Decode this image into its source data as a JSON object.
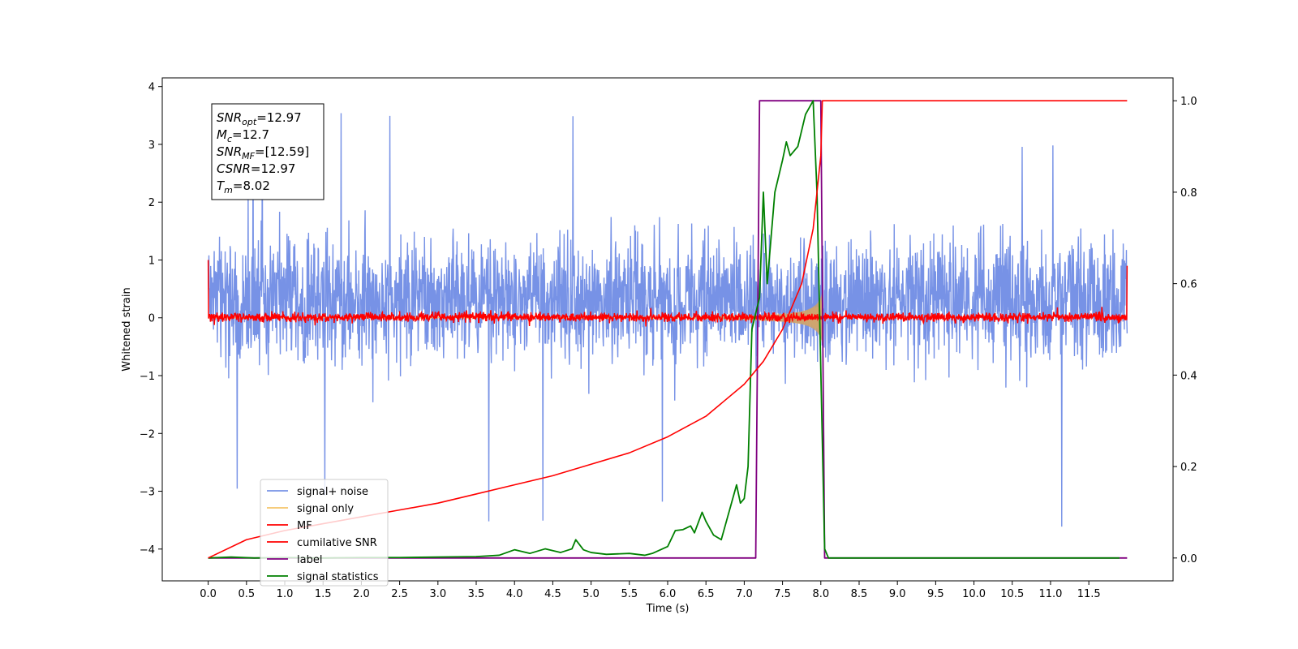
{
  "chart_data": {
    "type": "line",
    "xlabel": "Time (s)",
    "ylabel": "Whitened strain",
    "xlim": [
      -0.6,
      12.6
    ],
    "ylim_left": [
      -4.55,
      4.15
    ],
    "ylim_right": [
      -0.05,
      1.05
    ],
    "x_ticks": [
      0.0,
      0.5,
      1.0,
      1.5,
      2.0,
      2.5,
      3.0,
      3.5,
      4.0,
      4.5,
      5.0,
      5.5,
      6.0,
      6.5,
      7.0,
      7.5,
      8.0,
      8.5,
      9.0,
      9.5,
      10.0,
      10.5,
      11.0,
      11.5
    ],
    "x_tick_labels": [
      "0.0",
      "0.5",
      "1.0",
      "1.5",
      "2.0",
      "2.5",
      "3.0",
      "3.5",
      "4.0",
      "4.5",
      "5.0",
      "5.5",
      "6.0",
      "6.5",
      "7.0",
      "7.5",
      "8.0",
      "8.5",
      "9.0",
      "9.5",
      "10.0",
      "10.5",
      "11.0",
      "11.5"
    ],
    "y_left_ticks": [
      -4,
      -3,
      -2,
      -1,
      0,
      1,
      2,
      3,
      4
    ],
    "y_left_tick_labels": [
      "−4",
      "−3",
      "−2",
      "−1",
      "0",
      "1",
      "2",
      "3",
      "4"
    ],
    "y_right_ticks": [
      0.0,
      0.2,
      0.4,
      0.6,
      0.8,
      1.0
    ],
    "y_right_tick_labels": [
      "0.0",
      "0.2",
      "0.4",
      "0.6",
      "0.8",
      "1.0"
    ],
    "annotation": {
      "lines": [
        {
          "sym": "SNR",
          "sub": "opt",
          "value": "=12.97"
        },
        {
          "sym": "M",
          "sub": "c",
          "value": "=12.7"
        },
        {
          "sym": "SNR",
          "sub": "MF",
          "value": "=[12.59]"
        },
        {
          "sym": "CSNR",
          "sub": "",
          "value": "=12.97"
        },
        {
          "sym": "T",
          "sub": "m",
          "value": "=8.02"
        }
      ]
    },
    "legend_position": "lower-left",
    "series": [
      {
        "name": "signal+ noise",
        "color": "#7792e6",
        "axis": "left",
        "style": "noise-band",
        "x_range": [
          0.0,
          12.0
        ],
        "typical_range": [
          -1.6,
          2.3
        ],
        "extremes": [
          -4.2,
          3.8
        ]
      },
      {
        "name": "signal only",
        "color": "#f5c46a",
        "axis": "left",
        "style": "chirp",
        "x_range": [
          0.0,
          8.02
        ],
        "peak_amplitude": 0.9,
        "merger_time": 8.02
      },
      {
        "name": "MF",
        "color": "#ff0000",
        "axis": "left",
        "style": "noise-band",
        "x_range": [
          0.0,
          12.0
        ],
        "typical_range": [
          -0.18,
          0.2
        ],
        "endpoints": [
          1.0,
          0.9
        ]
      },
      {
        "name": "cumilative SNR",
        "color": "#ff0000",
        "axis": "right",
        "x": [
          0.0,
          0.5,
          1.0,
          1.5,
          2.0,
          2.5,
          3.0,
          3.5,
          4.0,
          4.5,
          5.0,
          5.5,
          6.0,
          6.5,
          7.0,
          7.25,
          7.5,
          7.75,
          7.9,
          8.0,
          8.02,
          12.0
        ],
        "y": [
          0.0,
          0.04,
          0.06,
          0.075,
          0.09,
          0.105,
          0.12,
          0.14,
          0.16,
          0.18,
          0.205,
          0.23,
          0.265,
          0.31,
          0.38,
          0.43,
          0.5,
          0.6,
          0.72,
          0.88,
          1.0,
          1.0
        ]
      },
      {
        "name": "label",
        "color": "#800080",
        "axis": "right",
        "x": [
          0.0,
          7.15,
          7.2,
          8.0,
          8.05,
          12.0
        ],
        "y": [
          0.0,
          0.0,
          1.0,
          1.0,
          0.0,
          0.0
        ]
      },
      {
        "name": "signal statistics",
        "color": "#008000",
        "axis": "right",
        "x": [
          0.0,
          0.3,
          0.6,
          1.0,
          1.5,
          2.0,
          2.5,
          3.0,
          3.5,
          3.8,
          4.0,
          4.2,
          4.4,
          4.6,
          4.75,
          4.8,
          4.9,
          5.0,
          5.2,
          5.5,
          5.7,
          5.8,
          6.0,
          6.1,
          6.2,
          6.3,
          6.35,
          6.45,
          6.5,
          6.6,
          6.7,
          6.8,
          6.9,
          6.95,
          7.0,
          7.05,
          7.1,
          7.2,
          7.25,
          7.3,
          7.4,
          7.5,
          7.55,
          7.6,
          7.7,
          7.8,
          7.9,
          7.95,
          8.05,
          8.1,
          8.2,
          9.0,
          10.0,
          11.0,
          11.9
        ],
        "y": [
          0.0,
          0.002,
          0.0,
          0.001,
          0.0,
          0.001,
          0.001,
          0.002,
          0.003,
          0.006,
          0.018,
          0.01,
          0.02,
          0.012,
          0.02,
          0.04,
          0.018,
          0.012,
          0.008,
          0.01,
          0.006,
          0.01,
          0.025,
          0.06,
          0.062,
          0.07,
          0.055,
          0.1,
          0.08,
          0.05,
          0.04,
          0.1,
          0.16,
          0.12,
          0.13,
          0.2,
          0.5,
          0.57,
          0.8,
          0.6,
          0.8,
          0.87,
          0.91,
          0.88,
          0.9,
          0.97,
          1.0,
          0.8,
          0.02,
          0.0,
          0.0,
          0.0,
          0.0,
          0.0,
          0.0
        ]
      }
    ]
  }
}
